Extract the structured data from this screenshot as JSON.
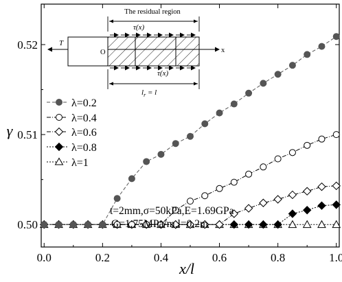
{
  "chart_data": {
    "type": "line",
    "xlabel": "x/l",
    "ylabel": "γ",
    "xlim": [
      -0.01,
      1.01
    ],
    "ylim": [
      0.4975,
      0.5245
    ],
    "x_ticks": [
      0.0,
      0.2,
      0.4,
      0.6,
      0.8,
      1.0
    ],
    "x_tick_labels": [
      "0.0",
      "0.2",
      "0.4",
      "0.6",
      "0.8",
      "1.0"
    ],
    "y_ticks": [
      0.5,
      0.51,
      0.52
    ],
    "y_tick_labels": [
      "0.50",
      "0.51",
      "0.52"
    ],
    "grid": false,
    "legend_position": "left",
    "series": [
      {
        "name": "λ=0.2",
        "marker": "circle-filled",
        "color": "#555555",
        "line_style": "dash",
        "x": [
          0.0,
          0.05,
          0.1,
          0.15,
          0.2,
          0.25,
          0.3,
          0.35,
          0.4,
          0.45,
          0.5,
          0.55,
          0.6,
          0.65,
          0.7,
          0.75,
          0.8,
          0.85,
          0.9,
          0.95,
          1.0
        ],
        "values": [
          0.5,
          0.5,
          0.5,
          0.5,
          0.5,
          0.5029,
          0.5051,
          0.507,
          0.5078,
          0.509,
          0.5098,
          0.5112,
          0.5124,
          0.5134,
          0.5146,
          0.5157,
          0.5167,
          0.5177,
          0.5189,
          0.5198,
          0.5209
        ]
      },
      {
        "name": "λ=0.4",
        "marker": "circle-open",
        "color": "#000000",
        "line_style": "dash-dot",
        "x": [
          0.0,
          0.05,
          0.1,
          0.15,
          0.2,
          0.25,
          0.3,
          0.35,
          0.4,
          0.45,
          0.5,
          0.55,
          0.6,
          0.65,
          0.7,
          0.75,
          0.8,
          0.85,
          0.9,
          0.95,
          1.0
        ],
        "values": [
          0.5,
          0.5,
          0.5,
          0.5,
          0.5,
          0.5,
          0.5,
          0.5,
          0.5,
          0.5016,
          0.5026,
          0.5032,
          0.504,
          0.5047,
          0.5056,
          0.5064,
          0.5073,
          0.508,
          0.5088,
          0.5095,
          0.51
        ]
      },
      {
        "name": "λ=0.6",
        "marker": "diamond-open",
        "color": "#000000",
        "line_style": "dash-dot",
        "x": [
          0.0,
          0.05,
          0.1,
          0.15,
          0.2,
          0.25,
          0.3,
          0.35,
          0.4,
          0.45,
          0.5,
          0.55,
          0.6,
          0.65,
          0.7,
          0.75,
          0.8,
          0.85,
          0.9,
          0.95,
          1.0
        ],
        "values": [
          0.5,
          0.5,
          0.5,
          0.5,
          0.5,
          0.5,
          0.5,
          0.5,
          0.5,
          0.5,
          0.5,
          0.5,
          0.5,
          0.5012,
          0.5018,
          0.5024,
          0.5028,
          0.5033,
          0.5037,
          0.5042,
          0.5043
        ]
      },
      {
        "name": "λ=0.8",
        "marker": "diamond-filled",
        "color": "#000000",
        "line_style": "dot",
        "x": [
          0.0,
          0.05,
          0.1,
          0.15,
          0.2,
          0.25,
          0.3,
          0.35,
          0.4,
          0.45,
          0.5,
          0.55,
          0.6,
          0.65,
          0.7,
          0.75,
          0.8,
          0.85,
          0.9,
          0.95,
          1.0
        ],
        "values": [
          0.5,
          0.5,
          0.5,
          0.5,
          0.5,
          0.5,
          0.5,
          0.5,
          0.5,
          0.5,
          0.5,
          0.5,
          0.5,
          0.5,
          0.5,
          0.5,
          0.5,
          0.5012,
          0.5016,
          0.5021,
          0.5022
        ]
      },
      {
        "name": "λ=1",
        "marker": "triangle-open",
        "color": "#000000",
        "line_style": "dot",
        "x": [
          0.0,
          0.05,
          0.1,
          0.15,
          0.2,
          0.25,
          0.3,
          0.35,
          0.4,
          0.45,
          0.5,
          0.55,
          0.6,
          0.65,
          0.7,
          0.75,
          0.8,
          0.85,
          0.9,
          0.95,
          1.0
        ],
        "values": [
          0.5,
          0.5,
          0.5,
          0.5,
          0.5,
          0.5,
          0.5,
          0.5,
          0.5,
          0.5,
          0.5,
          0.5,
          0.5,
          0.5,
          0.5,
          0.5,
          0.5,
          0.5,
          0.5,
          0.5,
          0.5
        ]
      }
    ],
    "annotations": [
      "t=2mm,σ=50kPa,E=1.69GPa",
      "G=1.75MPa/m,l=0.2m"
    ],
    "inset": {
      "title": "The residual region",
      "force_label": "T",
      "origin_label": "O",
      "axis_label": "x",
      "tau_top_label": "τ(x)",
      "tau_bottom_label": "τ(x)",
      "length_label_main": "l",
      "length_label_sub": "r",
      "length_label_rest": " = l"
    }
  }
}
